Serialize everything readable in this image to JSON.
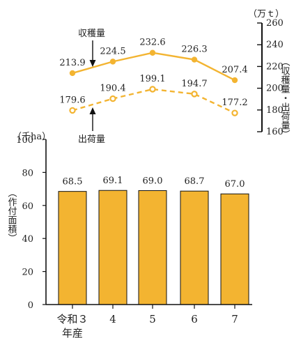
{
  "chart_data": [
    {
      "type": "line",
      "x": [
        "令和３年産",
        "4",
        "5",
        "6",
        "7"
      ],
      "series": [
        {
          "name": "収穫量",
          "values": [
            213.9,
            224.5,
            232.6,
            226.3,
            207.4
          ],
          "style": "solid",
          "marker": "filled-circle"
        },
        {
          "name": "出荷量",
          "values": [
            179.6,
            190.4,
            199.1,
            194.7,
            177.2
          ],
          "style": "dashed",
          "marker": "hollow-circle"
        }
      ],
      "y_axis_side": "right",
      "ylabel": "収穫量・出荷量",
      "y_unit": "（万ｔ）",
      "ylim": [
        160,
        260
      ],
      "yticks": [
        160,
        180,
        200,
        220,
        240,
        260
      ]
    },
    {
      "type": "bar",
      "categories": [
        "令和３年産",
        "4",
        "5",
        "6",
        "7"
      ],
      "category_labels": [
        [
          "令和３",
          "年産"
        ],
        [
          "4"
        ],
        [
          "5"
        ],
        [
          "6"
        ],
        [
          "7"
        ]
      ],
      "values": [
        68.5,
        69.1,
        69.0,
        68.7,
        67.0
      ],
      "ylabel": "作付面積",
      "y_unit": "（千ha）",
      "ylim": [
        0,
        100
      ],
      "yticks": [
        0,
        20,
        40,
        60,
        80,
        100
      ]
    }
  ],
  "text": {
    "harvest_annotation": "収穫量",
    "shipment_annotation": "出荷量",
    "line_unit": "（万ｔ）",
    "line_axis_label": "（収穫量・出荷量）",
    "bar_unit": "（千ha）",
    "bar_axis_label": "（作付面積）"
  },
  "colors": {
    "bar": "#F3B431",
    "bar_stroke": "#111111",
    "line": "#F3B431",
    "axis": "#111111"
  }
}
